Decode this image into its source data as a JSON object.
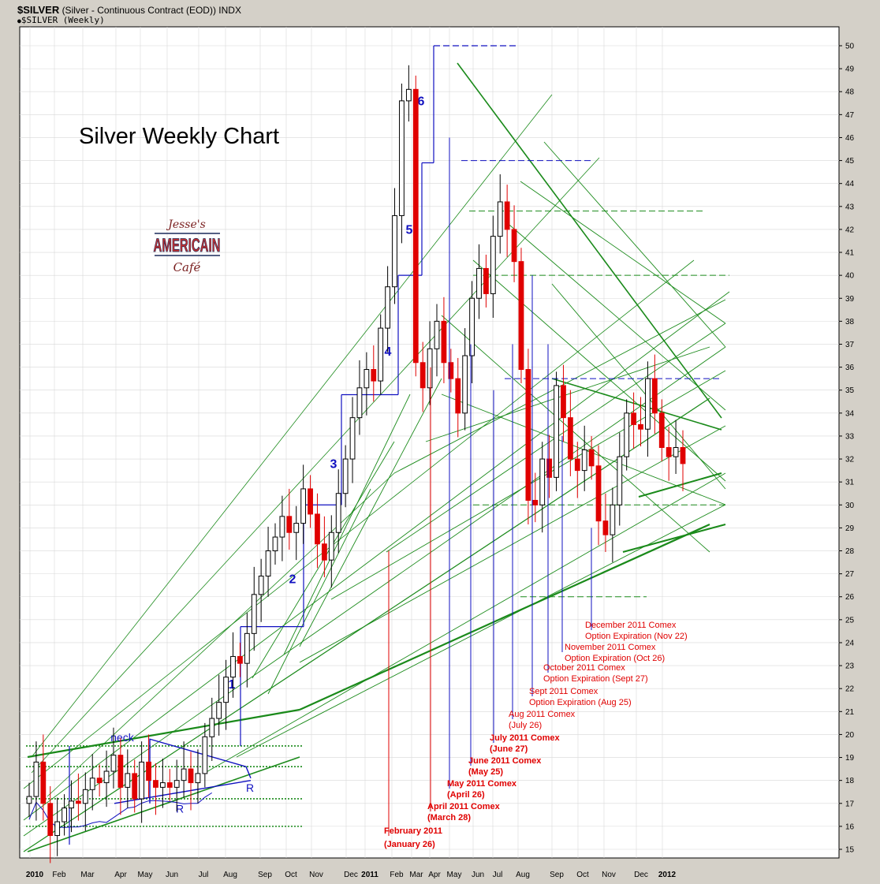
{
  "header": {
    "symbol": "$SILVER",
    "description": "(Silver - Continuous Contract (EOD))",
    "exchange": "INDX",
    "subtitle": "$SILVER (Weekly)"
  },
  "logo": {
    "line1": "Jesse's",
    "line2": "AMERICAIN",
    "line3": "Café"
  },
  "colors": {
    "up_candle": "#ffffff",
    "down_candle": "#e00000",
    "trend_green": "#1a8a1a",
    "wave_blue": "#1010c0",
    "label_red": "#e00000",
    "grid": "#d8d8d8"
  },
  "chart_data": {
    "type": "candlestick",
    "title": "Silver Weekly Chart",
    "ylim": [
      15,
      50
    ],
    "y_ticks": [
      15,
      16,
      17,
      18,
      19,
      20,
      21,
      22,
      23,
      24,
      25,
      26,
      27,
      28,
      29,
      30,
      31,
      32,
      33,
      34,
      35,
      36,
      37,
      38,
      39,
      40,
      41,
      42,
      43,
      44,
      45,
      46,
      47,
      48,
      49,
      50
    ],
    "x_ticks": [
      "2010",
      "Feb",
      "Mar",
      "Apr",
      "May",
      "Jun",
      "Jul",
      "Aug",
      "Sep",
      "Oct",
      "Nov",
      "Dec",
      "2011",
      "Feb",
      "Mar",
      "Apr",
      "May",
      "Jun",
      "Jul",
      "Aug",
      "Sep",
      "Oct",
      "Nov",
      "Dec",
      "2012"
    ],
    "weekly_close": [
      17.3,
      18.8,
      17.0,
      15.6,
      16.2,
      16.8,
      17.1,
      17.0,
      17.6,
      18.1,
      17.9,
      18.4,
      19.1,
      17.7,
      18.3,
      17.2,
      18.8,
      18.0,
      17.7,
      17.9,
      17.7,
      18.0,
      18.5,
      17.9,
      18.3,
      19.9,
      20.7,
      21.4,
      22.5,
      23.4,
      23.1,
      24.4,
      26.1,
      26.9,
      28.0,
      28.6,
      29.5,
      28.8,
      29.2,
      30.7,
      29.6,
      28.3,
      27.6,
      28.8,
      30.5,
      32.0,
      33.8,
      35.1,
      35.9,
      35.4,
      37.7,
      39.5,
      42.6,
      47.6,
      48.1,
      36.2,
      35.1,
      36.8,
      38.0,
      36.2,
      35.5,
      34.0,
      36.5,
      39.0,
      40.3,
      39.2,
      41.7,
      43.2,
      42.0,
      40.6,
      35.9,
      30.2,
      30.0,
      32.0,
      31.2,
      35.2,
      33.8,
      32.0,
      31.5,
      32.4,
      31.7,
      29.3,
      28.7,
      30.0,
      32.1,
      34.0,
      33.5,
      33.3,
      35.5,
      34.0,
      32.5,
      32.1,
      32.5,
      31.8
    ],
    "wave_labels": [
      "1",
      "2",
      "3",
      "4",
      "5",
      "6"
    ],
    "pattern_labels": {
      "neck": "neck",
      "shoulder_left": "R",
      "shoulder_right": "R"
    },
    "annotations": [
      {
        "title": "February 2011",
        "sub": "(January 26)"
      },
      {
        "title": "April 2011 Comex",
        "sub": "(March 28)"
      },
      {
        "title": "May 2011 Comex",
        "sub": "(April 26)"
      },
      {
        "title": "June 2011 Comex",
        "sub": "(May 25)"
      },
      {
        "title": "July 2011 Comex",
        "sub": "(June 27)"
      },
      {
        "title": "Aug 2011 Comex",
        "sub": "(July 26)"
      },
      {
        "title": "Sept 2011 Comex",
        "sub": "Option Expiration (Aug 25)"
      },
      {
        "title": "October 2011 Comex",
        "sub": "Option Expiration (Sept 27)"
      },
      {
        "title": "November 2011 Comex",
        "sub": "Option Expiration (Oct 26)"
      },
      {
        "title": "December 2011 Comex",
        "sub": "Option Expiration (Nov 22)"
      }
    ]
  }
}
